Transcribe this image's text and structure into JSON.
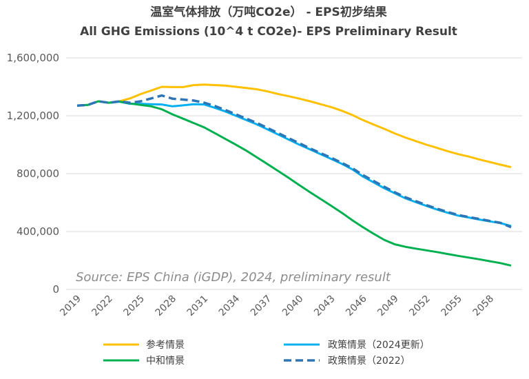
{
  "chart_data": {
    "type": "line",
    "title": "温室气体排放（万吨CO2e） - EPS初步结果",
    "subtitle": "All GHG Emissions (10^4 t CO2e)- EPS Preliminary Result",
    "xlabel": "",
    "ylabel": "",
    "xlim": [
      2019,
      2060
    ],
    "ylim": [
      0,
      1600000
    ],
    "yticks": [
      0,
      400000,
      800000,
      1200000,
      1600000
    ],
    "ytick_labels": [
      "0",
      "400,000",
      "800,000",
      "1,200,000",
      "1,600,000"
    ],
    "xtick_labels": [
      "2019",
      "2022",
      "2025",
      "2028",
      "2031",
      "2034",
      "2037",
      "2040",
      "2043",
      "2046",
      "2049",
      "2052",
      "2055",
      "2058"
    ],
    "xticks": [
      2019,
      2022,
      2025,
      2028,
      2031,
      2034,
      2037,
      2040,
      2043,
      2046,
      2049,
      2052,
      2055,
      2058
    ],
    "grid": "horizontal",
    "legend_position": "bottom",
    "annotation": "Source: EPS China (iGDP), 2024, preliminary result",
    "x": [
      2019,
      2020,
      2021,
      2022,
      2023,
      2024,
      2025,
      2026,
      2027,
      2028,
      2029,
      2030,
      2031,
      2032,
      2033,
      2034,
      2035,
      2036,
      2037,
      2038,
      2039,
      2040,
      2041,
      2042,
      2043,
      2044,
      2045,
      2046,
      2047,
      2048,
      2049,
      2050,
      2051,
      2052,
      2053,
      2054,
      2055,
      2056,
      2057,
      2058,
      2059,
      2060
    ],
    "series": [
      {
        "name": "参考情景",
        "color": "#FFC000",
        "dash": false,
        "values": [
          1270000,
          1275000,
          1300000,
          1290000,
          1300000,
          1320000,
          1350000,
          1375000,
          1400000,
          1398000,
          1398000,
          1412000,
          1415000,
          1412000,
          1408000,
          1400000,
          1392000,
          1383000,
          1368000,
          1350000,
          1335000,
          1318000,
          1300000,
          1280000,
          1260000,
          1235000,
          1205000,
          1170000,
          1140000,
          1110000,
          1078000,
          1050000,
          1025000,
          1000000,
          978000,
          955000,
          935000,
          918000,
          898000,
          880000,
          862000,
          845000
        ]
      },
      {
        "name": "政策情景（2024更新）",
        "color": "#00B0F0",
        "dash": false,
        "values": [
          1270000,
          1275000,
          1300000,
          1290000,
          1297000,
          1283000,
          1283000,
          1280000,
          1278000,
          1265000,
          1272000,
          1280000,
          1278000,
          1255000,
          1230000,
          1200000,
          1170000,
          1140000,
          1105000,
          1070000,
          1035000,
          1000000,
          968000,
          935000,
          902000,
          868000,
          830000,
          780000,
          740000,
          700000,
          665000,
          630000,
          603000,
          577000,
          552000,
          530000,
          510000,
          497000,
          483000,
          470000,
          458000,
          438000
        ]
      },
      {
        "name": "中和情景",
        "color": "#00B050",
        "dash": false,
        "values": [
          1270000,
          1275000,
          1300000,
          1290000,
          1298000,
          1285000,
          1275000,
          1265000,
          1245000,
          1210000,
          1180000,
          1150000,
          1120000,
          1080000,
          1040000,
          1000000,
          958000,
          912000,
          865000,
          818000,
          770000,
          720000,
          672000,
          625000,
          578000,
          530000,
          478000,
          430000,
          385000,
          343000,
          312000,
          295000,
          282000,
          270000,
          258000,
          245000,
          232000,
          220000,
          208000,
          195000,
          182000,
          165000
        ]
      },
      {
        "name": "政策情景（2022）",
        "color": "#2E75B6",
        "dash": true,
        "values": [
          1270000,
          1275000,
          1300000,
          1290000,
          1300000,
          1290000,
          1300000,
          1320000,
          1340000,
          1318000,
          1312000,
          1305000,
          1290000,
          1268000,
          1240000,
          1210000,
          1180000,
          1150000,
          1115000,
          1080000,
          1045000,
          1010000,
          975000,
          942000,
          910000,
          875000,
          838000,
          790000,
          750000,
          710000,
          672000,
          637000,
          610000,
          583000,
          558000,
          535000,
          515000,
          500000,
          487000,
          473000,
          460000,
          430000
        ]
      }
    ]
  }
}
